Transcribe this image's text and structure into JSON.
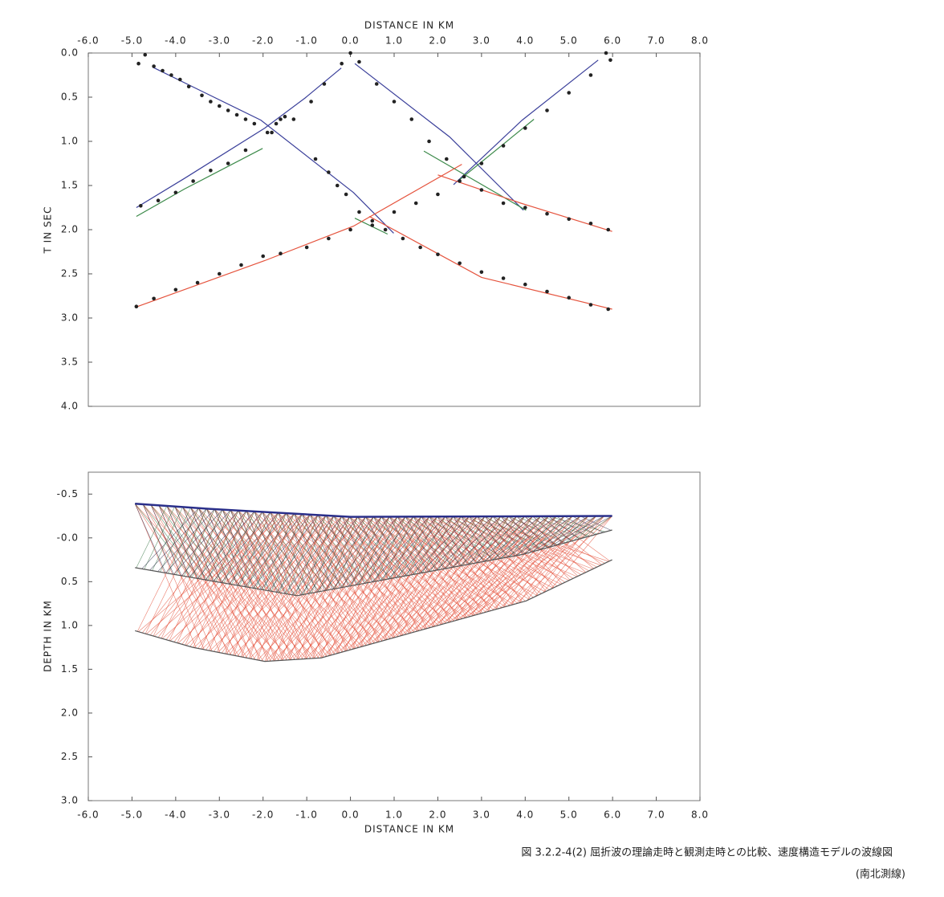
{
  "chart_data": [
    {
      "type": "line",
      "x_label": "DISTANCE IN KM",
      "y_label": "T IN SEC",
      "xaxis_position": "top",
      "y_inverted": true,
      "xlim": [
        -6,
        8
      ],
      "ylim": [
        0,
        4
      ],
      "xticks": [
        {
          "value": -6,
          "label": "-6.0"
        },
        {
          "value": -5,
          "label": "-5.0"
        },
        {
          "value": -4,
          "label": "-4.0"
        },
        {
          "value": -3,
          "label": "-3.0"
        },
        {
          "value": -2,
          "label": "-2.0"
        },
        {
          "value": -1,
          "label": "-1.0"
        },
        {
          "value": 0,
          "label": "0.0"
        },
        {
          "value": 1,
          "label": "1.0"
        },
        {
          "value": 2,
          "label": "2.0"
        },
        {
          "value": 3,
          "label": "3.0"
        },
        {
          "value": 4,
          "label": "4.0"
        },
        {
          "value": 5,
          "label": "5.0"
        },
        {
          "value": 6,
          "label": "6.0"
        },
        {
          "value": 7,
          "label": "7.0"
        },
        {
          "value": 8,
          "label": "8.0"
        }
      ],
      "yticks": [
        {
          "value": 0,
          "label": "0.0"
        },
        {
          "value": 0.5,
          "label": "0.5"
        },
        {
          "value": 1,
          "label": "1.0"
        },
        {
          "value": 1.5,
          "label": "1.5"
        },
        {
          "value": 2,
          "label": "2.0"
        },
        {
          "value": 2.5,
          "label": "2.5"
        },
        {
          "value": 3,
          "label": "3.0"
        },
        {
          "value": 3.5,
          "label": "3.5"
        },
        {
          "value": 4,
          "label": "4.0"
        }
      ],
      "series": [
        {
          "style": "line",
          "color": "#3a3f9a",
          "x": [
            -4.53,
            -2.05,
            0.07,
            0.99
          ],
          "values": [
            0.16,
            0.76,
            1.58,
            2.04
          ]
        },
        {
          "style": "line",
          "color": "#3a3f9a",
          "x": [
            -4.9,
            -3.8,
            -1.96,
            -1.04,
            -0.21
          ],
          "values": [
            1.75,
            1.42,
            0.85,
            0.51,
            0.17
          ]
        },
        {
          "style": "line",
          "color": "#3a3f9a",
          "x": [
            0.1,
            2.27,
            3.96
          ],
          "values": [
            0.12,
            0.95,
            1.78
          ]
        },
        {
          "style": "line",
          "color": "#3a3f9a",
          "x": [
            5.67,
            3.93,
            2.36
          ],
          "values": [
            0.08,
            0.76,
            1.49
          ]
        },
        {
          "style": "line",
          "color": "#3c8a4a",
          "x": [
            -4.9,
            -3.8,
            -2.01
          ],
          "values": [
            1.85,
            1.54,
            1.08
          ]
        },
        {
          "style": "line",
          "color": "#3c8a4a",
          "x": [
            1.68,
            4.02
          ],
          "values": [
            1.11,
            1.78
          ]
        },
        {
          "style": "line",
          "color": "#3c8a4a",
          "x": [
            2.46,
            4.2
          ],
          "values": [
            1.45,
            0.75
          ]
        },
        {
          "style": "line",
          "color": "#3c8a4a",
          "x": [
            0.1,
            0.85
          ],
          "values": [
            1.87,
            2.05
          ]
        },
        {
          "style": "line",
          "color": "#e5533d",
          "x": [
            -4.93,
            -1.96,
            0.07,
            2.55
          ],
          "values": [
            2.88,
            2.35,
            1.96,
            1.26
          ]
        },
        {
          "style": "line",
          "color": "#e5533d",
          "x": [
            2.0,
            3.9,
            5.99
          ],
          "values": [
            1.38,
            1.7,
            2.02
          ]
        },
        {
          "style": "line",
          "color": "#e5533d",
          "x": [
            0.43,
            3.0,
            5.99
          ],
          "values": [
            1.85,
            2.54,
            2.9
          ]
        },
        {
          "style": "points",
          "color": "#222222",
          "x": [
            -4.85,
            -4.7,
            -4.5,
            -4.3,
            -4.1,
            -3.9,
            -3.7,
            -3.4,
            -3.2,
            -3.0,
            -2.8,
            -2.6,
            -2.4,
            -2.2,
            -1.8,
            -1.7,
            -1.6,
            -1.5,
            -0.8,
            -0.5,
            -0.3,
            -0.1,
            0.2,
            0.5,
            0.8,
            1.2,
            1.6,
            2.0,
            2.5,
            3.0,
            3.5,
            4.0,
            4.5,
            5.0,
            5.5,
            5.9,
            -0.2,
            -0.6,
            -0.9,
            -1.3,
            -1.9,
            -2.4,
            -2.8,
            -3.2,
            -3.6,
            -4.0,
            -4.4,
            -4.8,
            0.0,
            0.2,
            0.6,
            1.0,
            1.4,
            1.8,
            2.2,
            2.6,
            3.0,
            3.5,
            4.0,
            4.5,
            5.0,
            5.5,
            5.9,
            5.85,
            5.95,
            5.5,
            5.0,
            4.5,
            4.0,
            3.5,
            3.0,
            2.5,
            2.0,
            1.5,
            1.0,
            0.5,
            0.0,
            -0.5,
            -1.0,
            -1.6,
            -2.0,
            -2.5,
            -3.0,
            -3.5,
            -4.0,
            -4.5,
            -4.9
          ],
          "values": [
            0.12,
            0.02,
            0.15,
            0.2,
            0.25,
            0.3,
            0.38,
            0.48,
            0.55,
            0.6,
            0.65,
            0.7,
            0.75,
            0.8,
            0.9,
            0.8,
            0.75,
            0.72,
            1.2,
            1.35,
            1.5,
            1.6,
            1.8,
            1.95,
            2.0,
            2.1,
            2.2,
            2.28,
            2.38,
            2.48,
            2.55,
            2.62,
            2.7,
            2.77,
            2.85,
            2.9,
            0.12,
            0.35,
            0.55,
            0.75,
            0.9,
            1.1,
            1.25,
            1.33,
            1.45,
            1.58,
            1.67,
            1.73,
            0.0,
            0.1,
            0.35,
            0.55,
            0.75,
            1.0,
            1.2,
            1.4,
            1.55,
            1.7,
            1.75,
            1.82,
            1.88,
            1.93,
            2.0,
            0.0,
            0.08,
            0.25,
            0.45,
            0.65,
            0.85,
            1.05,
            1.25,
            1.45,
            1.6,
            1.7,
            1.8,
            1.9,
            2.0,
            2.1,
            2.2,
            2.27,
            2.3,
            2.4,
            2.5,
            2.6,
            2.68,
            2.78,
            2.87
          ]
        }
      ]
    },
    {
      "type": "rays",
      "x_label": "DISTANCE IN KM",
      "y_label": "DEPTH IN KM",
      "xaxis_position": "bottom",
      "y_inverted": true,
      "xlim": [
        -6,
        8
      ],
      "ylim": [
        -0.75,
        3
      ],
      "xticks": [
        {
          "value": -6,
          "label": "-6.0"
        },
        {
          "value": -5,
          "label": "-5.0"
        },
        {
          "value": -4,
          "label": "-4.0"
        },
        {
          "value": -3,
          "label": "-3.0"
        },
        {
          "value": -2,
          "label": "-2.0"
        },
        {
          "value": -1,
          "label": "-1.0"
        },
        {
          "value": 0,
          "label": "0.0"
        },
        {
          "value": 1,
          "label": "1.0"
        },
        {
          "value": 2,
          "label": "2.0"
        },
        {
          "value": 3,
          "label": "3.0"
        },
        {
          "value": 4,
          "label": "4.0"
        },
        {
          "value": 5,
          "label": "5.0"
        },
        {
          "value": 6,
          "label": "6.0"
        },
        {
          "value": 7,
          "label": "7.0"
        },
        {
          "value": 8,
          "label": "8.0"
        }
      ],
      "yticks": [
        {
          "value": -0.5,
          "label": "-0.5"
        },
        {
          "value": 0,
          "label": "-0.0"
        },
        {
          "value": 0.5,
          "label": "0.5"
        },
        {
          "value": 1,
          "label": "1.0"
        },
        {
          "value": 1.5,
          "label": "1.5"
        },
        {
          "value": 2,
          "label": "2.0"
        },
        {
          "value": 2.5,
          "label": "2.5"
        },
        {
          "value": 3,
          "label": "3.0"
        }
      ],
      "series": [
        {
          "style": "line",
          "role": "surface",
          "color": "#2a2f8a",
          "x": [
            -4.93,
            -3.2,
            0.0,
            5.99
          ],
          "values": [
            -0.39,
            -0.33,
            -0.24,
            -0.25
          ]
        },
        {
          "style": "line",
          "role": "layer",
          "color": "#555555",
          "x": [
            -4.93,
            -1.22,
            3.93,
            5.99
          ],
          "values": [
            0.34,
            0.66,
            0.19,
            -0.09
          ]
        },
        {
          "style": "line",
          "role": "layer",
          "color": "#555555",
          "x": [
            -4.93,
            -3.61,
            -1.96,
            -0.67,
            4.02,
            5.99
          ],
          "values": [
            1.06,
            1.25,
            1.41,
            1.37,
            0.72,
            0.25
          ]
        }
      ]
    }
  ],
  "caption": {
    "line1": "図 3.2.2-4(2)  屈折波の理論走時と観測走時との比較、速度構造モデルの波線図",
    "line2": "(南北測線)"
  }
}
